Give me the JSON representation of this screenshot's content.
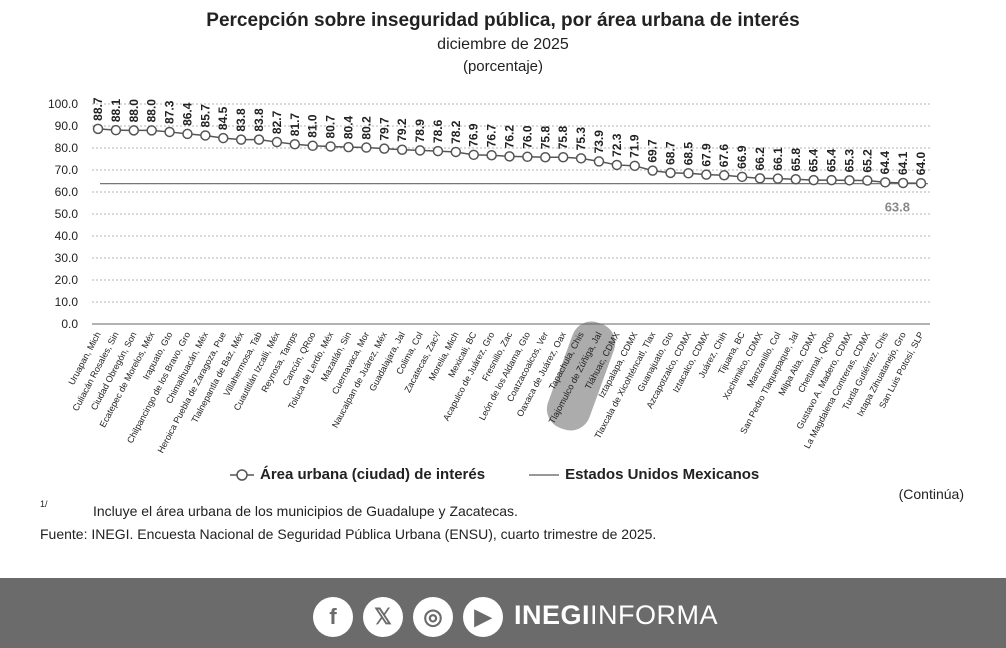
{
  "chart_data": {
    "type": "line",
    "title": "Percepción sobre inseguridad pública, por área urbana de interés",
    "subtitle": "diciembre de 2025",
    "unit_label": "(porcentaje)",
    "ylim": [
      0,
      100
    ],
    "yticks": [
      "0.0",
      "10.0",
      "20.0",
      "30.0",
      "40.0",
      "50.0",
      "60.0",
      "70.0",
      "80.0",
      "90.0",
      "100.0"
    ],
    "categories": [
      "Uruapan, Mich",
      "Culiacán Rosales, Sin",
      "Ciudad Obregón, Son",
      "Ecatepec de Morelos, Méx",
      "Irapuato, Gto",
      "Chilpancingo de los Bravo, Gro",
      "Chimalhuacán, Méx",
      "Heroica Puebla de Zaragoza, Pue",
      "Tlalnepantla de Baz, Méx",
      "Villahermosa, Tab",
      "Cuautitlán Izcalli, Méx",
      "Reynosa, Tamps",
      "Cancún, QRoo",
      "Toluca de Lerdo, Méx",
      "Mazatlán, Sin",
      "Cuernavaca, Mor",
      "Naucalpan de Juárez, Méx",
      "Guadalajara, Jal",
      "Colima, Col",
      "Zacatecas, Zac¹/",
      "Morelia, Mich",
      "Mexicali, BC",
      "Acapulco de Juárez, Gro",
      "Fresnillo, Zac",
      "León de los Aldama, Gto",
      "Coatzacoalcos, Ver",
      "Oaxaca de Juárez, Oax",
      "Tapachula, Chis",
      "Tlajomulco de Zúñiga, Jal",
      "Tláhuac, CDMX",
      "Iztapalapa, CDMX",
      "Tlaxcala de Xicohténcatl, Tlax",
      "Guanajuato, Gto",
      "Azcapotzalco, CDMX",
      "Iztacalco, CDMX",
      "Juárez, Chih",
      "Tijuana, BC",
      "Xochimilco, CDMX",
      "Manzanillo, Col",
      "San Pedro Tlaquepaque, Jal",
      "Milpa Alta, CDMX",
      "Chetumal, QRoo",
      "Gustavo A. Madero, CDMX",
      "La Magdalena Contreras, CDMX",
      "Tuxtla Gutiérrez, Chis",
      "Ixtapa Zihuatanejo, Gro",
      "San Luis Potosí, SLP"
    ],
    "series": [
      {
        "name": "Área urbana (ciudad) de interés",
        "values": [
          88.7,
          88.1,
          88.0,
          88.0,
          87.3,
          86.4,
          85.7,
          84.5,
          83.8,
          83.8,
          82.7,
          81.7,
          81.0,
          80.7,
          80.4,
          80.2,
          79.7,
          79.2,
          78.9,
          78.6,
          78.2,
          76.9,
          76.7,
          76.2,
          76.0,
          75.8,
          75.8,
          75.3,
          73.9,
          72.3,
          71.9,
          69.7,
          68.7,
          68.5,
          67.9,
          67.6,
          66.9,
          66.2,
          66.1,
          65.8,
          65.4,
          65.4,
          65.3,
          65.2,
          64.4,
          64.1,
          64.0
        ],
        "labels": [
          "88.7",
          "88.1",
          "88.0",
          "88.0",
          "87.3",
          "86.4",
          "85.7",
          "84.5",
          "83.8",
          "83.8",
          "82.7",
          "81.7",
          "81.0",
          "80.7",
          "80.4",
          "80.2",
          "79.7",
          "79.2",
          "78.9",
          "78.6",
          "78.2",
          "76.9",
          "76.7",
          "76.2",
          "76.0",
          "75.8",
          "75.8",
          "75.3",
          "73.9",
          "72.3",
          "71.9",
          "69.7",
          "68.7",
          "68.5",
          "67.9",
          "67.6",
          "66.9",
          "66.2",
          "66.1",
          "65.8",
          "65.4",
          "65.4",
          "65.3",
          "65.2",
          "64.4",
          "64.1",
          "64.0"
        ]
      },
      {
        "name": "Estados Unidos Mexicanos",
        "value": 63.8,
        "label": "63.8"
      }
    ],
    "highlight_category_index": 27,
    "colors": {
      "line": "#555555",
      "marker_fill": "#ffffff",
      "grid": "#9a9a9a",
      "national": "#777777",
      "highlight": "#9e9e9e"
    }
  },
  "legend": {
    "series1": "Área urbana (ciudad) de interés",
    "series2": "Estados Unidos Mexicanos"
  },
  "notes": {
    "continua": "(Continúa)",
    "footnote_mark": "1/",
    "footnote_text": "Incluye el área urbana de los municipios de Guadalupe y Zacatecas.",
    "source": "Fuente: INEGI. Encuesta Nacional de Seguridad Pública Urbana (ENSU), cuarto trimestre de 2025."
  },
  "footer": {
    "bg_color": "#6b6b6b",
    "social": [
      {
        "icon": "facebook-icon",
        "glyph": "f"
      },
      {
        "icon": "x-icon",
        "glyph": "𝕏"
      },
      {
        "icon": "instagram-icon",
        "glyph": "◎"
      },
      {
        "icon": "youtube-icon",
        "glyph": "▶"
      }
    ],
    "brand_bold": "INEGI",
    "brand_light": "INFORMA"
  }
}
